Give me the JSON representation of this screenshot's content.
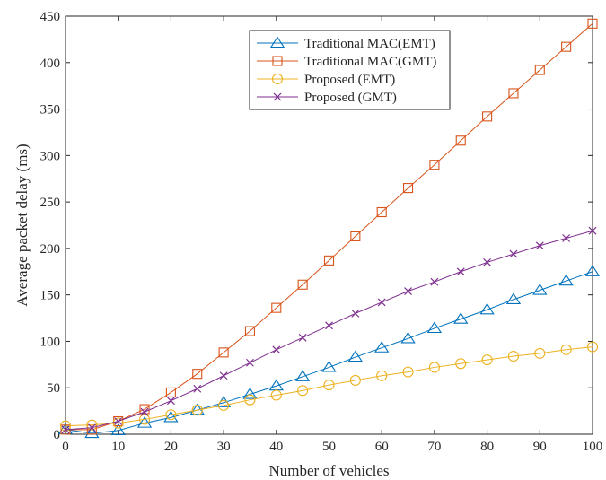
{
  "chart_data": {
    "type": "line",
    "title": "",
    "xlabel": "Number of vehicles",
    "ylabel": "Average packet delay (ms)",
    "xlim": [
      0,
      100
    ],
    "ylim": [
      0,
      450
    ],
    "xticks": [
      0,
      10,
      20,
      30,
      40,
      50,
      60,
      70,
      80,
      90,
      100
    ],
    "yticks": [
      0,
      50,
      100,
      150,
      200,
      250,
      300,
      350,
      400,
      450
    ],
    "grid": false,
    "legend_position": "top-center",
    "x": [
      0,
      5,
      10,
      15,
      20,
      25,
      30,
      35,
      40,
      45,
      50,
      55,
      60,
      65,
      70,
      75,
      80,
      85,
      90,
      95,
      100
    ],
    "series": [
      {
        "name": "Traditional MAC(EMT)",
        "marker": "triangle",
        "color": "#0072BD",
        "values": [
          5,
          1,
          4,
          12,
          18,
          26,
          34,
          43,
          52,
          62,
          72,
          83,
          93,
          103,
          114,
          124,
          134,
          145,
          155,
          165,
          175
        ]
      },
      {
        "name": "Traditional MAC(GMT)",
        "marker": "square",
        "color": "#D95319",
        "values": [
          5,
          5,
          14,
          27,
          45,
          65,
          88,
          111,
          136,
          161,
          187,
          213,
          239,
          265,
          290,
          316,
          342,
          367,
          392,
          417,
          442
        ]
      },
      {
        "name": "Proposed (EMT)",
        "marker": "circle",
        "color": "#EDB120",
        "values": [
          9,
          10,
          12,
          16,
          21,
          26,
          31,
          37,
          42,
          47,
          53,
          58,
          63,
          67,
          72,
          76,
          80,
          84,
          87,
          91,
          94
        ]
      },
      {
        "name": "Proposed (GMT)",
        "marker": "x",
        "color": "#7E2F8E",
        "values": [
          5,
          7,
          14,
          24,
          36,
          49,
          63,
          77,
          91,
          104,
          117,
          130,
          142,
          154,
          164,
          175,
          185,
          194,
          203,
          211,
          219
        ]
      }
    ]
  }
}
